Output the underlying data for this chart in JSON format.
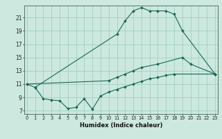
{
  "xlabel": "Humidex (Indice chaleur)",
  "bg_color": "#cce8df",
  "grid_color": "#99ccbb",
  "line_color": "#1a6655",
  "x_ticks": [
    0,
    1,
    2,
    3,
    4,
    5,
    6,
    7,
    8,
    9,
    10,
    11,
    12,
    13,
    14,
    15,
    16,
    17,
    18,
    19,
    20,
    21,
    22,
    23
  ],
  "y_ticks": [
    7,
    9,
    11,
    13,
    15,
    17,
    19,
    21
  ],
  "xlim": [
    -0.3,
    23.3
  ],
  "ylim": [
    6.5,
    22.8
  ],
  "series": [
    {
      "x": [
        0,
        1,
        11,
        12,
        13,
        14,
        15,
        16,
        17,
        18,
        19,
        23
      ],
      "y": [
        11.0,
        10.5,
        18.5,
        20.5,
        22.0,
        22.5,
        22.0,
        22.0,
        22.0,
        21.5,
        19.0,
        12.5
      ]
    },
    {
      "x": [
        0,
        10,
        11,
        12,
        13,
        14,
        16,
        19,
        20,
        23
      ],
      "y": [
        11.0,
        11.5,
        12.0,
        12.5,
        13.0,
        13.5,
        14.0,
        15.0,
        14.0,
        12.5
      ]
    },
    {
      "x": [
        1,
        2,
        3,
        4,
        5,
        6,
        7,
        8,
        9,
        10,
        11,
        12,
        13,
        14,
        15,
        16,
        17,
        18,
        23
      ],
      "y": [
        10.5,
        8.8,
        8.6,
        8.5,
        7.3,
        7.5,
        8.8,
        7.2,
        9.2,
        9.8,
        10.2,
        10.6,
        11.0,
        11.4,
        11.8,
        12.0,
        12.3,
        12.5,
        12.5
      ]
    }
  ]
}
